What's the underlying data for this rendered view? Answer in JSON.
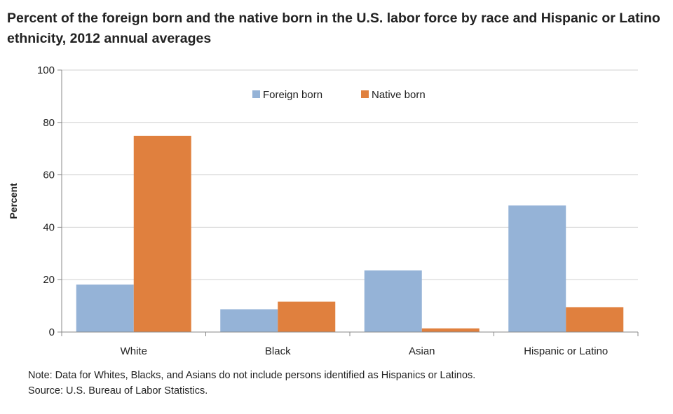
{
  "chart_data": {
    "type": "bar",
    "title": "Percent of the foreign born and the native born in the U.S. labor force by race and Hispanic or Latino ethnicity, 2012 annual averages",
    "ylabel": "Percent",
    "xlabel": "",
    "ylim": [
      0,
      100
    ],
    "yticks": [
      0,
      20,
      40,
      60,
      80,
      100
    ],
    "categories": [
      "White",
      "Black",
      "Asian",
      "Hispanic or Latino"
    ],
    "series": [
      {
        "name": "Foreign born",
        "color": "#95b3d7",
        "values": [
          18.1,
          8.7,
          23.5,
          48.3
        ]
      },
      {
        "name": "Native born",
        "color": "#e0803e",
        "values": [
          74.9,
          11.6,
          1.4,
          9.5
        ]
      }
    ],
    "grid": true,
    "legend": "top-center"
  },
  "notes": {
    "note": "Note: Data for Whites, Blacks, and Asians do not include persons  identified as Hispanics or Latinos.",
    "source": "Source:  U.S. Bureau of Labor Statistics."
  }
}
